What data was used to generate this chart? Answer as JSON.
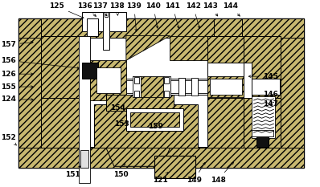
{
  "bg_color": "#ffffff",
  "line_color": "#000000",
  "hatch_light": "////",
  "hatch_color_light": "#c8b870",
  "dark_block": "#1a1a1a",
  "annotations": {
    "top": {
      "125": [
        68,
        7,
        105,
        23
      ],
      "136": [
        103,
        7,
        120,
        22
      ],
      "137": [
        122,
        7,
        133,
        22
      ],
      "138": [
        143,
        7,
        145,
        22
      ],
      "139": [
        165,
        7,
        168,
        42
      ],
      "140": [
        189,
        7,
        195,
        38
      ],
      "141": [
        213,
        7,
        222,
        38
      ],
      "142": [
        239,
        7,
        248,
        38
      ],
      "143": [
        260,
        7,
        272,
        22
      ],
      "144": [
        286,
        7,
        300,
        22
      ]
    },
    "left": {
      "157": [
        7,
        55,
        42,
        52
      ],
      "156": [
        7,
        75,
        100,
        85
      ],
      "126": [
        7,
        92,
        42,
        92
      ],
      "155": [
        7,
        108,
        42,
        108
      ],
      "124": [
        7,
        124,
        42,
        124
      ],
      "152": [
        7,
        172,
        18,
        182
      ]
    },
    "right": {
      "145": [
        336,
        95,
        305,
        95
      ],
      "146": [
        336,
        118,
        342,
        118
      ],
      "147": [
        336,
        130,
        340,
        135
      ]
    },
    "bottom": {
      "151": [
        88,
        218,
        100,
        205
      ],
      "150": [
        148,
        218,
        155,
        200
      ],
      "121": [
        198,
        225,
        208,
        215
      ],
      "149": [
        240,
        225,
        256,
        200
      ],
      "148": [
        270,
        225,
        292,
        200
      ]
    },
    "internal": {
      "154": [
        145,
        135
      ],
      "153": [
        150,
        155
      ],
      "159": [
        192,
        158
      ]
    }
  }
}
